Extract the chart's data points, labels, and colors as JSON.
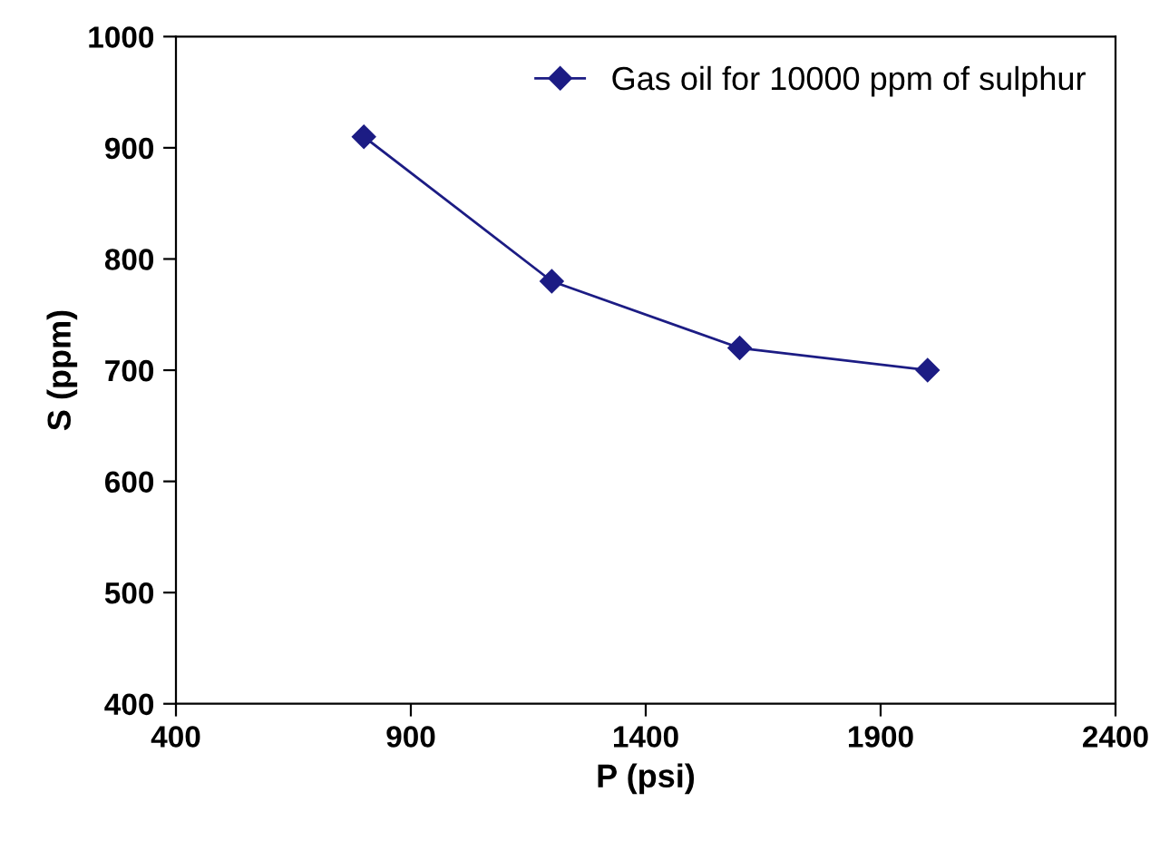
{
  "chart_data": {
    "type": "line",
    "xlabel": "P (psi)",
    "ylabel": "S (ppm)",
    "x": [
      800,
      1200,
      1600,
      2000
    ],
    "series": [
      {
        "name": "Gas oil for 10000 ppm of sulphur",
        "color": "#1c1c84",
        "values": [
          910,
          780,
          720,
          700
        ]
      }
    ],
    "xlim": [
      400,
      2400
    ],
    "xticks": [
      400,
      900,
      1400,
      1900,
      2400
    ],
    "ylim": [
      400,
      1000
    ],
    "yticks": [
      400,
      500,
      600,
      700,
      800,
      900,
      1000
    ],
    "marker": "diamond",
    "line_style": "solid",
    "grid": false,
    "legend": "top right"
  }
}
